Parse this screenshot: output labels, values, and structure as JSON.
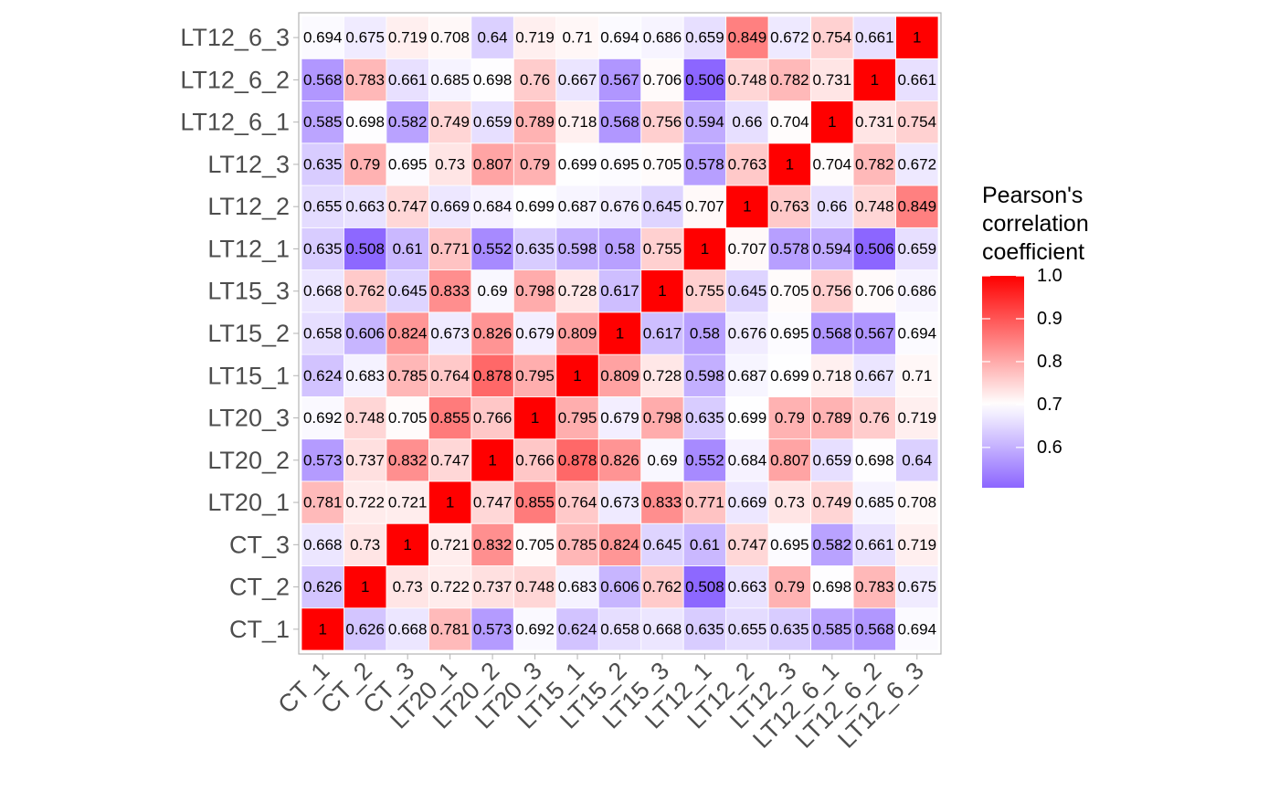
{
  "chart_data": {
    "type": "heatmap",
    "labels": [
      "CT_1",
      "CT_2",
      "CT_3",
      "LT20_1",
      "LT20_2",
      "LT20_3",
      "LT15_1",
      "LT15_2",
      "LT15_3",
      "LT12_1",
      "LT12_2",
      "LT12_3",
      "LT12_6_1",
      "LT12_6_2",
      "LT12_6_3"
    ],
    "matrix": [
      [
        1,
        0.626,
        0.668,
        0.781,
        0.573,
        0.692,
        0.624,
        0.658,
        0.668,
        0.635,
        0.655,
        0.635,
        0.585,
        0.568,
        0.694
      ],
      [
        0.626,
        1,
        0.73,
        0.722,
        0.737,
        0.748,
        0.683,
        0.606,
        0.762,
        0.508,
        0.663,
        0.79,
        0.698,
        0.783,
        0.675
      ],
      [
        0.668,
        0.73,
        1,
        0.721,
        0.832,
        0.705,
        0.785,
        0.824,
        0.645,
        0.61,
        0.747,
        0.695,
        0.582,
        0.661,
        0.719
      ],
      [
        0.781,
        0.722,
        0.721,
        1,
        0.747,
        0.855,
        0.764,
        0.673,
        0.833,
        0.771,
        0.669,
        0.73,
        0.749,
        0.685,
        0.708
      ],
      [
        0.573,
        0.737,
        0.832,
        0.747,
        1,
        0.766,
        0.878,
        0.826,
        0.69,
        0.552,
        0.684,
        0.807,
        0.659,
        0.698,
        0.64
      ],
      [
        0.692,
        0.748,
        0.705,
        0.855,
        0.766,
        1,
        0.795,
        0.679,
        0.798,
        0.635,
        0.699,
        0.79,
        0.789,
        0.76,
        0.719
      ],
      [
        0.624,
        0.683,
        0.785,
        0.764,
        0.878,
        0.795,
        1,
        0.809,
        0.728,
        0.598,
        0.687,
        0.699,
        0.718,
        0.667,
        0.71
      ],
      [
        0.658,
        0.606,
        0.824,
        0.673,
        0.826,
        0.679,
        0.809,
        1,
        0.617,
        0.58,
        0.676,
        0.695,
        0.568,
        0.567,
        0.694
      ],
      [
        0.668,
        0.762,
        0.645,
        0.833,
        0.69,
        0.798,
        0.728,
        0.617,
        1,
        0.755,
        0.645,
        0.705,
        0.756,
        0.706,
        0.686
      ],
      [
        0.635,
        0.508,
        0.61,
        0.771,
        0.552,
        0.635,
        0.598,
        0.58,
        0.755,
        1,
        0.707,
        0.578,
        0.594,
        0.506,
        0.659
      ],
      [
        0.655,
        0.663,
        0.747,
        0.669,
        0.684,
        0.699,
        0.687,
        0.676,
        0.645,
        0.707,
        1,
        0.763,
        0.66,
        0.748,
        0.849
      ],
      [
        0.635,
        0.79,
        0.695,
        0.73,
        0.807,
        0.79,
        0.699,
        0.695,
        0.705,
        0.578,
        0.763,
        1,
        0.704,
        0.782,
        0.672
      ],
      [
        0.585,
        0.698,
        0.582,
        0.749,
        0.659,
        0.789,
        0.718,
        0.568,
        0.756,
        0.594,
        0.66,
        0.704,
        1,
        0.731,
        0.754
      ],
      [
        0.568,
        0.783,
        0.661,
        0.685,
        0.698,
        0.76,
        0.667,
        0.567,
        0.706,
        0.506,
        0.748,
        0.782,
        0.731,
        1,
        0.661
      ],
      [
        0.694,
        0.675,
        0.719,
        0.708,
        0.64,
        0.719,
        0.71,
        0.694,
        0.686,
        0.659,
        0.849,
        0.672,
        0.754,
        0.661,
        1
      ]
    ],
    "legend": {
      "title_lines": [
        "Pearson's",
        "correlation",
        "coefficient"
      ],
      "ticks": [
        "1.0",
        "0.9",
        "0.8",
        "0.7",
        "0.6"
      ],
      "tick_values": [
        1.0,
        0.9,
        0.8,
        0.7,
        0.6
      ],
      "min": 0.506,
      "max": 1.0,
      "midpoint": 0.7
    },
    "colors": {
      "low": "#8c66ff",
      "mid": "#ffffff",
      "high": "#ff0000",
      "panel_border": "#b3b3b3",
      "tick_text": "#4d4d4d"
    },
    "xlabel": "",
    "ylabel": "",
    "title": ""
  }
}
